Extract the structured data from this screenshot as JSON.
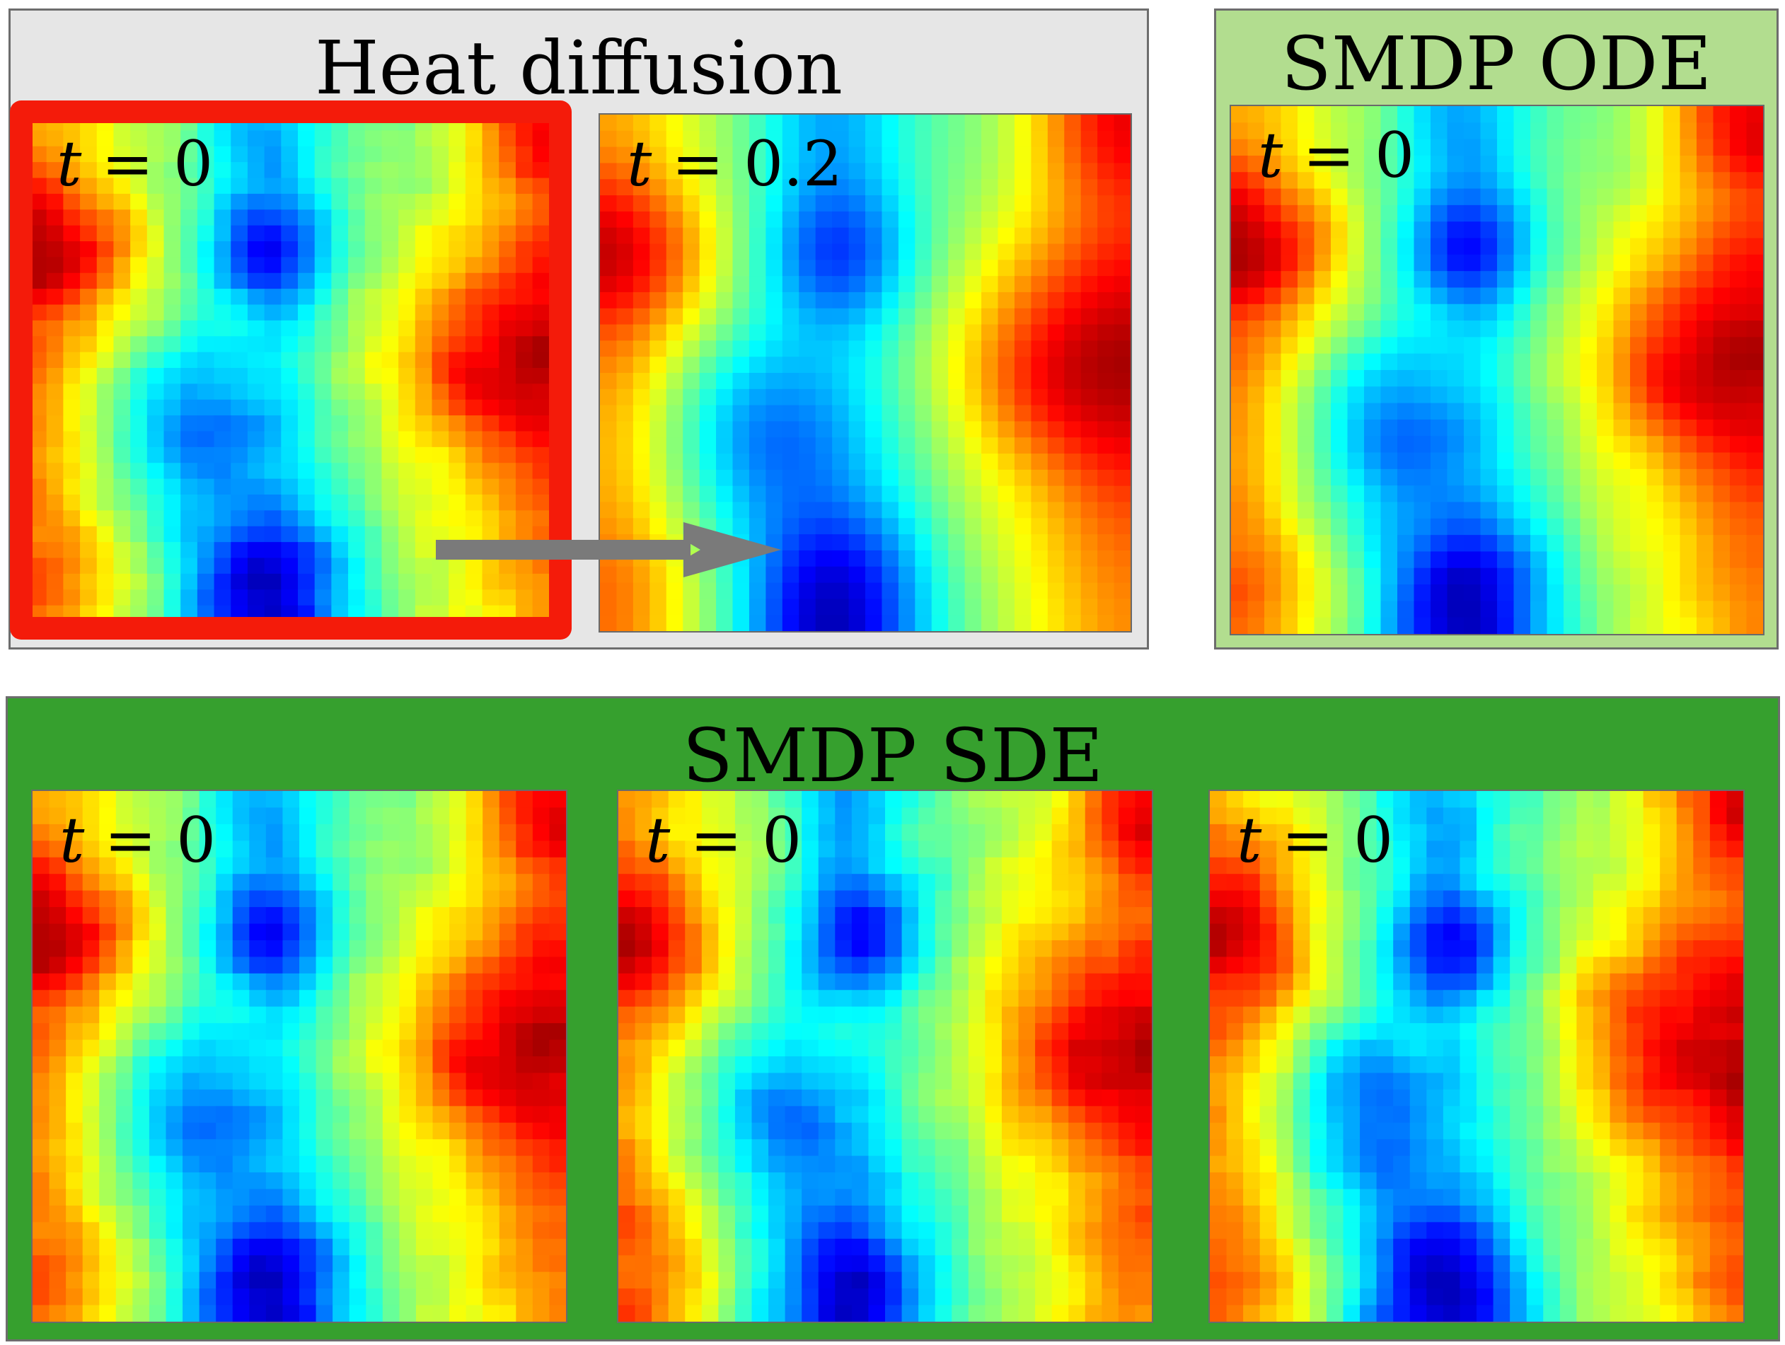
{
  "heat_panel": {
    "title": "Heat diffusion",
    "color": "#e6e6e6",
    "maps": [
      {
        "t_var": "t",
        "t_value": "= 0",
        "selected": true,
        "seed": 11,
        "smooth": 1
      },
      {
        "t_var": "t",
        "t_value": "= 0.2",
        "selected": false,
        "seed": 11,
        "smooth": 6
      }
    ],
    "arrow_color": "#7a7a7a"
  },
  "ode_panel": {
    "title": "SMDP ODE",
    "color": "#b2dd8f",
    "maps": [
      {
        "t_var": "t",
        "t_value": "= 0",
        "seed": 11,
        "smooth": 2
      }
    ]
  },
  "sde_panel": {
    "title": "SMDP SDE",
    "color": "#36a02e",
    "maps": [
      {
        "t_var": "t",
        "t_value": "= 0",
        "seed": 11,
        "smooth": 1
      },
      {
        "t_var": "t",
        "t_value": "= 0",
        "seed": 23,
        "smooth": 1
      },
      {
        "t_var": "t",
        "t_value": "= 0",
        "seed": 37,
        "smooth": 1
      }
    ]
  },
  "selection_color": "#f41b0a",
  "colormap": "jet"
}
